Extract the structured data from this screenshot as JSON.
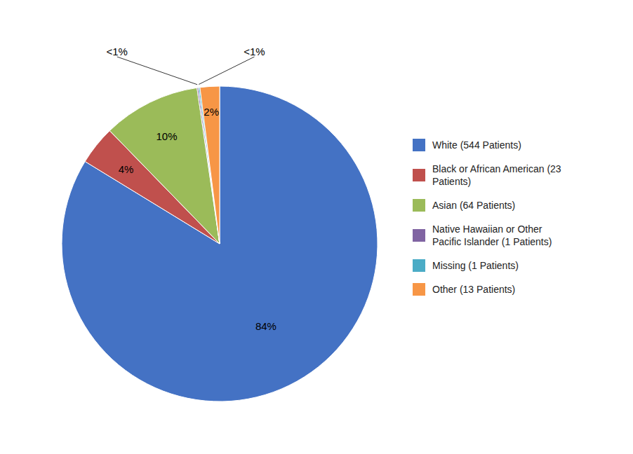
{
  "chart_data": {
    "type": "pie",
    "categories": [
      "White (544 Patients)",
      "Black or African American (23\n Patients)",
      "Asian (64 Patients)",
      "Native Hawaiian or Other\n Pacific Islander (1 Patients)",
      "Missing (1 Patients)",
      "Other (13 Patients)"
    ],
    "values": [
      84,
      4,
      10,
      0.15,
      0.15,
      2
    ],
    "value_labels": [
      "84%",
      "4%",
      "10%",
      "<1%",
      "<1%",
      "2%"
    ],
    "colors": [
      "#4472C4",
      "#C0504D",
      "#9BBB59",
      "#8064A2",
      "#4BACC6",
      "#F79646"
    ],
    "data_labels": true,
    "legend": "right"
  }
}
